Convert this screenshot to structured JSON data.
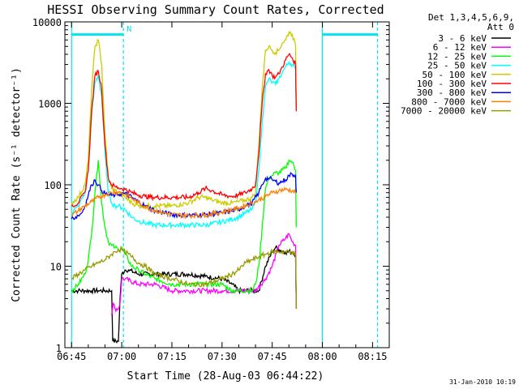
{
  "chart_data": {
    "type": "line",
    "title": "HESSI Observing Summary Count Rates, Corrected",
    "xlabel": "Start Time (28-Aug-03 06:44:22)",
    "ylabel": "Corrected Count Rate (s⁻¹ detector⁻¹)",
    "y_scale": "log",
    "ylim": [
      1,
      10000
    ],
    "xlim_minutes": [
      -2,
      95
    ],
    "x_tick_labels": [
      "06:45",
      "07:00",
      "07:15",
      "07:30",
      "07:45",
      "08:00",
      "08:15"
    ],
    "x_tick_minutes": [
      0,
      15,
      30,
      45,
      60,
      75,
      90
    ],
    "y_tick_labels": [
      "1",
      "10",
      "100",
      "1000",
      "10000"
    ],
    "y_tick_values": [
      1,
      10,
      100,
      1000,
      10000
    ],
    "legend_placement": "right",
    "legend_header": [
      "Det 1,3,4,5,6,9,",
      "Att 0"
    ],
    "series": [
      {
        "name": "3 - 6 keV",
        "color": "#000000",
        "x": [
          0,
          2,
          4,
          6,
          8,
          10,
          12,
          12.3,
          14,
          14.5,
          15,
          16,
          17,
          20,
          25,
          30,
          35,
          40,
          45,
          48,
          50,
          54,
          56,
          58,
          60,
          61,
          62,
          64,
          66,
          67,
          67.2
        ],
        "y": [
          5,
          5,
          5,
          5,
          5,
          5,
          5,
          1.2,
          1.2,
          4,
          8,
          9,
          9,
          8,
          8,
          8,
          8,
          7.5,
          7,
          6,
          5,
          5,
          5,
          10,
          15,
          17,
          16,
          15,
          15,
          14,
          3
        ]
      },
      {
        "name": "6 - 12 keV",
        "color": "#ff00ff",
        "x": [
          12,
          12.5,
          13,
          14,
          14.5,
          15,
          16,
          20,
          25,
          30,
          35,
          40,
          45,
          50,
          55,
          58,
          60,
          62,
          64,
          65,
          66,
          67,
          67.2
        ],
        "y": [
          2.5,
          3.5,
          3,
          3,
          3.5,
          7,
          7,
          6,
          6,
          5,
          5,
          5,
          5,
          5,
          5,
          7,
          10,
          18,
          22,
          25,
          20,
          18,
          3
        ]
      },
      {
        "name": "12 - 25 keV",
        "color": "#00ff00",
        "x": [
          0,
          2,
          4,
          5,
          6,
          7,
          8,
          9,
          10,
          11,
          12,
          13,
          14,
          15,
          16,
          18,
          20,
          22,
          25,
          30,
          35,
          40,
          45,
          48,
          50,
          52,
          54,
          55,
          56,
          57,
          58,
          59,
          60,
          61,
          62,
          64,
          65,
          66,
          67,
          67.2
        ],
        "y": [
          5,
          6,
          8,
          12,
          25,
          80,
          200,
          60,
          30,
          20,
          18,
          17,
          16,
          17,
          14,
          10,
          9,
          8,
          7,
          6,
          6,
          6,
          6,
          5,
          5,
          5,
          5,
          6,
          10,
          30,
          90,
          120,
          130,
          140,
          140,
          160,
          200,
          190,
          150,
          30
        ]
      },
      {
        "name": "25 - 50 keV",
        "color": "#00ffff",
        "x": [
          0,
          2,
          4,
          5,
          6,
          7,
          8,
          9,
          10,
          11,
          12,
          13,
          14,
          15,
          16,
          18,
          20,
          22,
          25,
          28,
          30,
          35,
          40,
          45,
          50,
          52,
          54,
          55,
          56,
          57,
          58,
          59,
          60,
          61,
          62,
          63,
          64,
          65,
          66,
          67,
          67.2
        ],
        "y": [
          45,
          55,
          80,
          150,
          700,
          1800,
          2200,
          1200,
          250,
          80,
          60,
          55,
          55,
          52,
          50,
          40,
          36,
          34,
          32,
          32,
          32,
          32,
          32,
          35,
          40,
          45,
          50,
          60,
          150,
          600,
          1600,
          2000,
          1800,
          1700,
          2000,
          2400,
          2800,
          3200,
          3000,
          2600,
          800
        ]
      },
      {
        "name": "50 - 100 keV",
        "color": "#cccc00",
        "x": [
          0,
          2,
          4,
          5,
          6,
          7,
          8,
          9,
          10,
          11,
          12,
          13,
          14,
          15,
          16,
          18,
          20,
          22,
          25,
          30,
          35,
          38,
          40,
          42,
          45,
          48,
          50,
          52,
          54,
          55,
          56,
          57,
          58,
          59,
          60,
          61,
          62,
          63,
          64,
          65,
          66,
          67,
          67.2
        ],
        "y": [
          60,
          70,
          100,
          200,
          1500,
          5000,
          6000,
          3000,
          400,
          120,
          90,
          85,
          80,
          75,
          70,
          60,
          55,
          55,
          55,
          55,
          60,
          70,
          70,
          65,
          60,
          60,
          62,
          65,
          70,
          80,
          300,
          1500,
          4500,
          5000,
          4500,
          4200,
          4500,
          5500,
          6000,
          7500,
          7000,
          5000,
          900
        ]
      },
      {
        "name": "100 - 300 keV",
        "color": "#ff0000",
        "x": [
          0,
          2,
          4,
          5,
          6,
          7,
          8,
          9,
          10,
          11,
          12,
          13,
          14,
          15,
          16,
          18,
          20,
          22,
          25,
          30,
          35,
          38,
          40,
          42,
          45,
          48,
          50,
          52,
          54,
          55,
          56,
          57,
          58,
          59,
          60,
          61,
          62,
          63,
          64,
          65,
          66,
          67,
          67.2
        ],
        "y": [
          55,
          60,
          80,
          150,
          800,
          2200,
          2500,
          1500,
          300,
          120,
          100,
          95,
          92,
          90,
          88,
          80,
          75,
          72,
          70,
          70,
          70,
          80,
          90,
          85,
          75,
          72,
          75,
          80,
          90,
          100,
          250,
          1000,
          2300,
          2600,
          2200,
          2100,
          2300,
          2800,
          3400,
          4000,
          3600,
          3000,
          800
        ]
      },
      {
        "name": "300 - 800 keV",
        "color": "#0000ff",
        "x": [
          0,
          2,
          3,
          4,
          5,
          6,
          7,
          8,
          9,
          10,
          11,
          12,
          13,
          14,
          15,
          16,
          18,
          20,
          22,
          25,
          30,
          35,
          40,
          45,
          50,
          52,
          54,
          56,
          57,
          58,
          59,
          60,
          61,
          62,
          63,
          64,
          65,
          66,
          67,
          67.2
        ],
        "y": [
          38,
          42,
          45,
          55,
          75,
          100,
          115,
          100,
          85,
          78,
          75,
          74,
          75,
          76,
          78,
          78,
          70,
          62,
          55,
          48,
          43,
          42,
          43,
          45,
          50,
          55,
          60,
          80,
          100,
          120,
          120,
          115,
          110,
          105,
          110,
          115,
          130,
          135,
          130,
          80
        ]
      },
      {
        "name": "800 - 7000 keV",
        "color": "#ff8000",
        "x": [
          0,
          2,
          4,
          6,
          8,
          10,
          12,
          14,
          15,
          16,
          18,
          20,
          22,
          25,
          30,
          35,
          40,
          45,
          50,
          55,
          58,
          60,
          62,
          64,
          66,
          67
        ],
        "y": [
          42,
          48,
          55,
          62,
          70,
          76,
          80,
          82,
          80,
          76,
          68,
          60,
          54,
          48,
          43,
          42,
          43,
          46,
          52,
          62,
          72,
          80,
          85,
          88,
          85,
          80
        ]
      },
      {
        "name": "7000 - 20000 keV",
        "color": "#999900",
        "x": [
          0,
          2,
          4,
          6,
          8,
          10,
          12,
          13,
          14,
          15,
          16,
          18,
          20,
          22,
          25,
          30,
          35,
          40,
          45,
          48,
          50,
          52,
          54,
          56,
          58,
          60,
          62,
          64,
          66,
          67,
          67.2
        ],
        "y": [
          7,
          8,
          9,
          10,
          11,
          12,
          14,
          15,
          16,
          16,
          15,
          13,
          11,
          10,
          8,
          7,
          6,
          6,
          7,
          8,
          9,
          11,
          12,
          13,
          14,
          15,
          15,
          15,
          15,
          14,
          3
        ]
      }
    ],
    "markers": {
      "cyan_vertical_lines_minutes": [
        0,
        15.5,
        75,
        91.5
      ],
      "dashed_lines_minutes": [
        15.5,
        91.5
      ],
      "status_bars_minutes": [
        [
          0,
          15.5
        ],
        [
          75,
          91.5
        ]
      ],
      "status_bar_level": 7000,
      "marker_label": "N",
      "marker_label_minute": 16
    },
    "timestamp": "31-Jan-2010 10:19"
  }
}
